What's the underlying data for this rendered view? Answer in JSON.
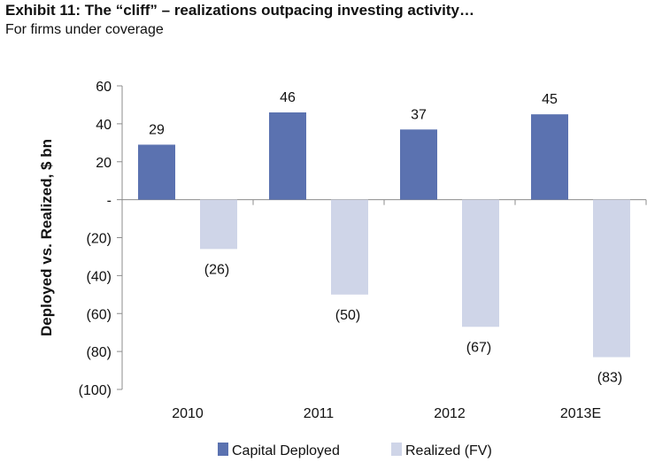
{
  "title": "Exhibit 11: The “cliff” – realizations outpacing investing activity…",
  "subtitle": "For firms under coverage",
  "chart_data": {
    "type": "bar",
    "categories": [
      "2010",
      "2011",
      "2012",
      "2013E"
    ],
    "series": [
      {
        "name": "Capital Deployed",
        "values": [
          29,
          46,
          37,
          45
        ],
        "labels": [
          "29",
          "46",
          "37",
          "45"
        ],
        "color": "#5b72b0"
      },
      {
        "name": "Realized (FV)",
        "values": [
          -26,
          -50,
          -67,
          -83
        ],
        "labels": [
          "(26)",
          "(50)",
          "(67)",
          "(83)"
        ],
        "color": "#cfd5e8"
      }
    ],
    "ylabel": "Deployed vs. Realized, $ bn",
    "ylim": [
      -100,
      60
    ],
    "yticks": [
      60,
      40,
      20,
      0,
      -20,
      -40,
      -60,
      -80,
      -100
    ],
    "ytick_labels": [
      "60",
      "40",
      "20",
      "-",
      "(20)",
      "(40)",
      "(60)",
      "(80)",
      "(100)"
    ],
    "grid": false,
    "legend_position": "bottom"
  }
}
